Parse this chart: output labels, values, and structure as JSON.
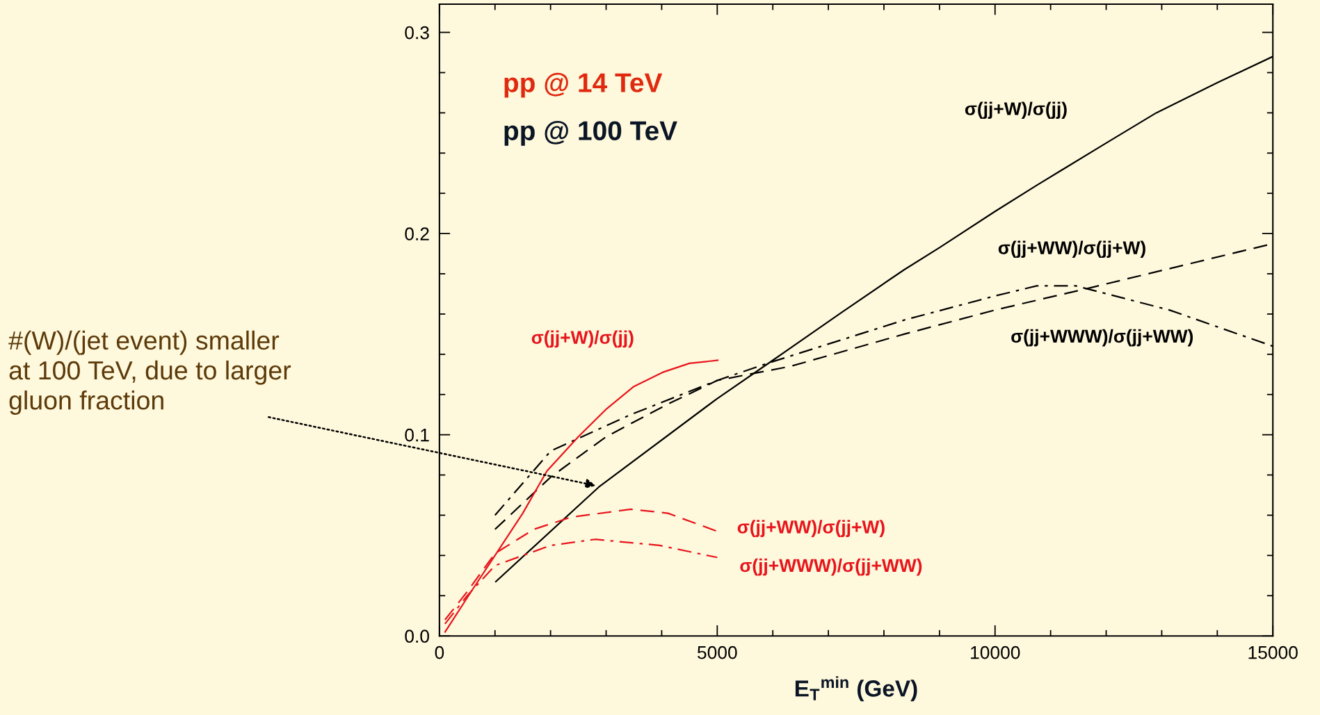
{
  "chart_data": {
    "type": "line",
    "xlabel": "E$_{T}$$^{min}$ (GeV)",
    "xlim": [
      0,
      15000
    ],
    "xticks": [
      0,
      5000,
      10000,
      15000
    ],
    "ylim": [
      0,
      0.314
    ],
    "yticks": [
      {
        "value": 0,
        "label": "0.0"
      },
      0.1,
      0.2,
      0.3
    ],
    "grid": false,
    "legend": false,
    "series": [
      {
        "name": "σ(jj+W)/σ(jj)",
        "color": "#000000",
        "line_style": "solid",
        "x": [
          1015,
          2868,
          5000,
          6000,
          7248,
          8363,
          9000,
          10000,
          10751,
          12000,
          12902,
          14000,
          15000
        ],
        "values": [
          0.027,
          0.074,
          0.118,
          0.137,
          0.161,
          0.182,
          0.193,
          0.211,
          0.224,
          0.245,
          0.26,
          0.275,
          0.288
        ]
      },
      {
        "name": "σ(jj+WW)/σ(jj+W)",
        "color": "#000000",
        "line_style": "dashed",
        "x": [
          1000,
          2005,
          3000,
          4094,
          5000,
          6318,
          8364,
          10000,
          11705,
          15000
        ],
        "values": [
          0.053,
          0.079,
          0.099,
          0.115,
          0.127,
          0.134,
          0.15,
          0.162,
          0.173,
          0.195
        ]
      },
      {
        "name": "σ(jj+WWW)/σ(jj+WW)",
        "color": "#000000",
        "line_style": "dashdot",
        "x": [
          1000,
          2005,
          3444,
          5000,
          5959,
          8364,
          10000,
          10751,
          11455,
          13136,
          15000
        ],
        "values": [
          0.06,
          0.092,
          0.11,
          0.127,
          0.136,
          0.157,
          0.169,
          0.174,
          0.174,
          0.162,
          0.144
        ]
      },
      {
        "name": "σ(jj+W)/σ(jj)",
        "color": "#e8141c",
        "line_style": "solid",
        "x": [
          102,
          570,
          1000,
          1500,
          1936,
          2500,
          3013,
          3500,
          4015,
          4500,
          5008
        ],
        "values": [
          0.002,
          0.022,
          0.04,
          0.061,
          0.082,
          0.099,
          0.113,
          0.124,
          0.131,
          0.1355,
          0.137
        ]
      },
      {
        "name": "σ(jj+WW)/σ(jj+W)",
        "color": "#e8141c",
        "line_style": "dashed",
        "x": [
          100,
          500,
          1000,
          1700,
          2366,
          3444,
          4111,
          5000
        ],
        "values": [
          0.008,
          0.022,
          0.041,
          0.053,
          0.059,
          0.063,
          0.061,
          0.052
        ]
      },
      {
        "name": "σ(jj+WWW)/σ(jj+WW)",
        "color": "#e8141c",
        "line_style": "dashdot",
        "x": [
          100,
          500,
          1000,
          2005,
          2798,
          3962,
          5000
        ],
        "values": [
          0.006,
          0.02,
          0.035,
          0.045,
          0.048,
          0.045,
          0.039
        ]
      }
    ],
    "annotations": [
      "pp @ 14 TeV",
      "pp @ 100 TeV",
      {
        "text": "#(W)/(jet event) smaller\nat 100 TeV, due to larger\ngluon fraction",
        "x": 2848,
        "y": 0.0745
      }
    ]
  }
}
